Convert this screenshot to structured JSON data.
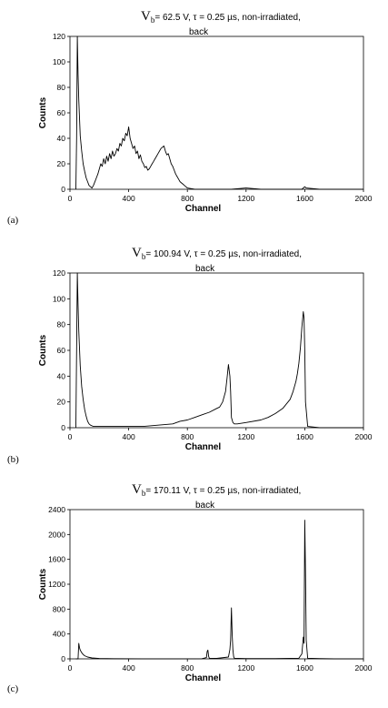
{
  "chart_data": [
    {
      "type": "line",
      "panel_label": "(a)",
      "title_prefix": "V",
      "title_sub": "b",
      "title_rest": "= 62.5 V, τ = 0.25 µs, non-irradiated,",
      "title_line2": "back",
      "xlabel": "Channel",
      "ylabel": "Counts",
      "xlim": [
        0,
        2000
      ],
      "ylim": [
        0,
        120
      ],
      "xticks": [
        "0",
        "400",
        "800",
        "1200",
        "1600",
        "2000"
      ],
      "yticks": [
        "0",
        "20",
        "40",
        "60",
        "80",
        "100",
        "120"
      ],
      "series": [
        {
          "x": [
            40,
            45,
            50,
            55,
            60,
            70,
            80,
            90,
            100,
            110,
            120,
            130,
            140,
            150,
            160,
            170,
            180,
            190,
            200,
            210,
            220,
            230,
            240,
            250,
            260,
            270,
            280,
            290,
            300,
            310,
            320,
            330,
            340,
            350,
            360,
            370,
            380,
            390,
            400,
            410,
            420,
            430,
            440,
            450,
            460,
            470,
            480,
            490,
            500,
            510,
            520,
            530,
            540,
            550,
            560,
            570,
            580,
            590,
            600,
            610,
            620,
            630,
            640,
            650,
            660,
            670,
            680,
            690,
            700,
            710,
            720,
            730,
            740,
            750,
            760,
            770,
            780,
            790,
            800,
            850,
            900,
            1000,
            1100,
            1200,
            1300,
            1400,
            1500,
            1580,
            1590,
            1600,
            1610,
            1700,
            1800,
            1900,
            2000
          ],
          "y": [
            0,
            40,
            120,
            90,
            70,
            42,
            30,
            20,
            14,
            9,
            6,
            3,
            2,
            1,
            3,
            6,
            9,
            12,
            16,
            20,
            18,
            24,
            20,
            26,
            22,
            28,
            24,
            30,
            26,
            28,
            32,
            30,
            36,
            34,
            40,
            38,
            44,
            42,
            49,
            40,
            36,
            32,
            34,
            28,
            30,
            24,
            27,
            22,
            20,
            17,
            18,
            15,
            16,
            18,
            20,
            22,
            24,
            26,
            28,
            30,
            32,
            33,
            34,
            30,
            27,
            28,
            24,
            20,
            18,
            15,
            12,
            10,
            8,
            6,
            5,
            4,
            3,
            2,
            1,
            0,
            0,
            0,
            0,
            1,
            0,
            0,
            0,
            0,
            1,
            2,
            1,
            0,
            0,
            0,
            0
          ]
        }
      ]
    },
    {
      "type": "line",
      "panel_label": "(b)",
      "title_prefix": "V",
      "title_sub": "b",
      "title_rest": "= 100.94 V, τ = 0.25 µs, non-irradiated,",
      "title_line2": "back",
      "xlabel": "Channel",
      "ylabel": "Counts",
      "xlim": [
        0,
        2000
      ],
      "ylim": [
        0,
        120
      ],
      "xticks": [
        "0",
        "400",
        "800",
        "1200",
        "1600",
        "2000"
      ],
      "yticks": [
        "0",
        "20",
        "40",
        "60",
        "80",
        "100",
        "120"
      ],
      "series": [
        {
          "x": [
            40,
            50,
            55,
            60,
            70,
            80,
            90,
            100,
            110,
            120,
            130,
            140,
            160,
            200,
            300,
            400,
            500,
            600,
            700,
            750,
            800,
            850,
            900,
            950,
            1000,
            1020,
            1040,
            1060,
            1070,
            1080,
            1090,
            1095,
            1100,
            1110,
            1120,
            1140,
            1200,
            1300,
            1350,
            1400,
            1450,
            1500,
            1520,
            1540,
            1550,
            1560,
            1570,
            1580,
            1590,
            1595,
            1600,
            1605,
            1620,
            1700,
            1800,
            1900,
            2000
          ],
          "y": [
            0,
            120,
            95,
            75,
            48,
            32,
            22,
            14,
            9,
            5,
            3,
            2,
            1,
            1,
            1,
            1,
            1,
            2,
            3,
            5,
            6,
            8,
            10,
            12,
            15,
            16,
            20,
            28,
            38,
            49,
            40,
            28,
            8,
            4,
            3,
            3,
            4,
            6,
            8,
            11,
            15,
            22,
            28,
            36,
            42,
            50,
            62,
            78,
            90,
            85,
            60,
            20,
            1,
            0,
            0,
            0,
            0
          ]
        }
      ]
    },
    {
      "type": "line",
      "panel_label": "(c)",
      "title_prefix": "V",
      "title_sub": "b",
      "title_rest": "= 170.11 V,  τ = 0.25 µs, non-irradiated,",
      "title_line2": "back",
      "xlabel": "Channel",
      "ylabel": "Counts",
      "xlim": [
        0,
        2000
      ],
      "ylim": [
        0,
        2400
      ],
      "xticks": [
        "0",
        "400",
        "800",
        "1200",
        "1600",
        "2000"
      ],
      "yticks": [
        "0",
        "400",
        "800",
        "1200",
        "1600",
        "2000",
        "2400"
      ],
      "series": [
        {
          "x": [
            40,
            55,
            60,
            65,
            70,
            80,
            90,
            100,
            120,
            150,
            200,
            300,
            500,
            700,
            900,
            930,
            935,
            940,
            945,
            950,
            1000,
            1080,
            1090,
            1095,
            1100,
            1105,
            1110,
            1115,
            1120,
            1200,
            1400,
            1560,
            1580,
            1590,
            1595,
            1600,
            1605,
            1610,
            1620,
            1700,
            1800,
            1900,
            2000
          ],
          "y": [
            0,
            0,
            250,
            180,
            140,
            100,
            70,
            50,
            30,
            15,
            6,
            3,
            2,
            2,
            3,
            20,
            120,
            140,
            40,
            10,
            8,
            30,
            150,
            300,
            820,
            400,
            150,
            40,
            10,
            5,
            5,
            10,
            80,
            350,
            250,
            2230,
            1400,
            300,
            10,
            5,
            0,
            0,
            0
          ]
        }
      ]
    }
  ]
}
